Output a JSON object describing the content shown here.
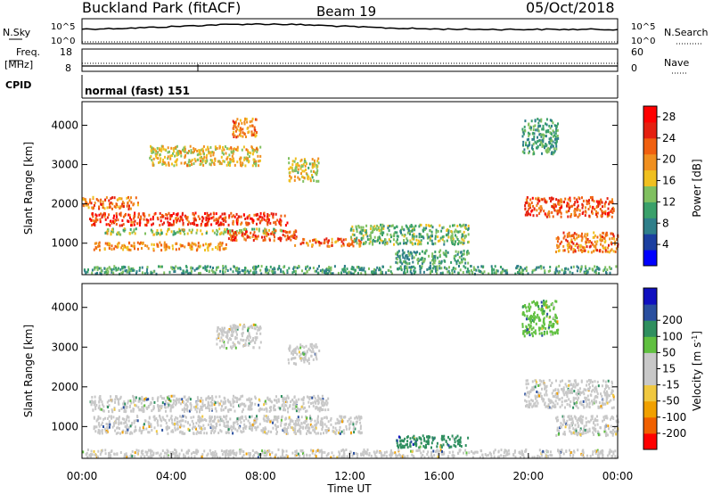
{
  "header": {
    "station": "Buckland Park (fitACF)",
    "beam": "Beam 19",
    "date": "05/Oct/2018"
  },
  "strip_noise": {
    "left_label": "N.Sky",
    "right_label": "N.Search",
    "ticks_left": [
      "10^5",
      "10^0"
    ],
    "ticks_right": [
      "10^5",
      "10^0"
    ]
  },
  "strip_freq": {
    "left_label": "Freq.",
    "left_unit": "[MHz]",
    "right_label": "Nave",
    "ticks_left": [
      "18",
      "8"
    ],
    "ticks_right": [
      "60",
      "0"
    ]
  },
  "strip_cpid": {
    "left_label": "CPID",
    "mode_text": "normal (fast) 151"
  },
  "colors": {
    "power_scale": [
      "#0000ff",
      "#1b3fa0",
      "#2f7f8a",
      "#3aa06a",
      "#80c060",
      "#f0c020",
      "#f09020",
      "#f06010",
      "#e52010",
      "#ff0000"
    ],
    "velocity_scale": [
      "#ff0000",
      "#f06000",
      "#f0a000",
      "#f0c840",
      "#c8c8c8",
      "#c8c8c8",
      "#60c040",
      "#2f8f5f",
      "#2a4f9f",
      "#1010c0"
    ]
  },
  "chart_data": [
    {
      "type": "heatmap",
      "panel": "power",
      "ylabel": "Slant Range [km]",
      "colorbar_label": "Power [dB]",
      "colorbar_ticks": [
        "4",
        "8",
        "12",
        "16",
        "20",
        "24",
        "28"
      ],
      "colorbar_range": [
        0,
        30
      ],
      "ylim": [
        200,
        4600
      ],
      "yticks": [
        "1000",
        "2000",
        "3000",
        "4000"
      ],
      "xlim_hours": [
        0,
        24
      ],
      "regions": [
        {
          "t": [
            0.3,
            9.2
          ],
          "r": [
            1480,
            1800
          ],
          "v": 26
        },
        {
          "t": [
            1.0,
            9.0
          ],
          "r": [
            1250,
            1400
          ],
          "v": 14
        },
        {
          "t": [
            0.5,
            6.5
          ],
          "r": [
            850,
            1050
          ],
          "v": 20
        },
        {
          "t": [
            6.5,
            9.6
          ],
          "r": [
            1100,
            1350
          ],
          "v": 24
        },
        {
          "t": [
            9.5,
            12.5
          ],
          "r": [
            950,
            1150
          ],
          "v": 22
        },
        {
          "t": [
            12.0,
            17.3
          ],
          "r": [
            1000,
            1500
          ],
          "v": 12
        },
        {
          "t": [
            14.0,
            17.3
          ],
          "r": [
            500,
            850
          ],
          "v": 10
        },
        {
          "t": [
            0.0,
            24.0
          ],
          "r": [
            250,
            450
          ],
          "v": 10
        },
        {
          "t": [
            3.0,
            8.0
          ],
          "r": [
            3000,
            3500
          ],
          "v": 17
        },
        {
          "t": [
            6.7,
            7.8
          ],
          "r": [
            3700,
            4200
          ],
          "v": 22
        },
        {
          "t": [
            9.2,
            10.6
          ],
          "r": [
            2600,
            3200
          ],
          "v": 16
        },
        {
          "t": [
            19.7,
            21.3
          ],
          "r": [
            3300,
            4200
          ],
          "v": 10
        },
        {
          "t": [
            19.8,
            23.8
          ],
          "r": [
            1700,
            2200
          ],
          "v": 24
        },
        {
          "t": [
            21.2,
            24.0
          ],
          "r": [
            800,
            1300
          ],
          "v": 22
        },
        {
          "t": [
            0.0,
            2.5
          ],
          "r": [
            1900,
            2200
          ],
          "v": 22
        }
      ]
    },
    {
      "type": "heatmap",
      "panel": "velocity",
      "ylabel": "Slant Range [km]",
      "colorbar_label": "Velocity [m s",
      "colorbar_label_sup": "-1",
      "colorbar_label_end": "]",
      "colorbar_ticks": [
        "-200",
        "-100",
        "-50",
        "-15",
        "15",
        "50",
        "100",
        "200"
      ],
      "ylim": [
        200,
        4600
      ],
      "yticks": [
        "1000",
        "2000",
        "3000",
        "4000"
      ],
      "xlim_hours": [
        0,
        24
      ],
      "xticks": [
        "00:00",
        "04:00",
        "08:00",
        "12:00",
        "16:00",
        "20:00",
        "00:00"
      ],
      "xlabel": "Time UT",
      "regions": [
        {
          "t": [
            0.3,
            11.0
          ],
          "r": [
            1400,
            1800
          ],
          "v": 0
        },
        {
          "t": [
            0.5,
            12.5
          ],
          "r": [
            850,
            1300
          ],
          "v": 0
        },
        {
          "t": [
            14.0,
            17.3
          ],
          "r": [
            500,
            800
          ],
          "v": 60
        },
        {
          "t": [
            0.0,
            24.0
          ],
          "r": [
            250,
            450
          ],
          "v": -20
        },
        {
          "t": [
            6.0,
            8.0
          ],
          "r": [
            3000,
            3600
          ],
          "v": -40
        },
        {
          "t": [
            19.8,
            23.8
          ],
          "r": [
            1500,
            2200
          ],
          "v": 0
        },
        {
          "t": [
            21.2,
            24.0
          ],
          "r": [
            800,
            1300
          ],
          "v": 0
        },
        {
          "t": [
            19.7,
            21.3
          ],
          "r": [
            3300,
            4200
          ],
          "v": 40
        },
        {
          "t": [
            9.2,
            10.6
          ],
          "r": [
            2600,
            3100
          ],
          "v": -20
        }
      ]
    }
  ]
}
